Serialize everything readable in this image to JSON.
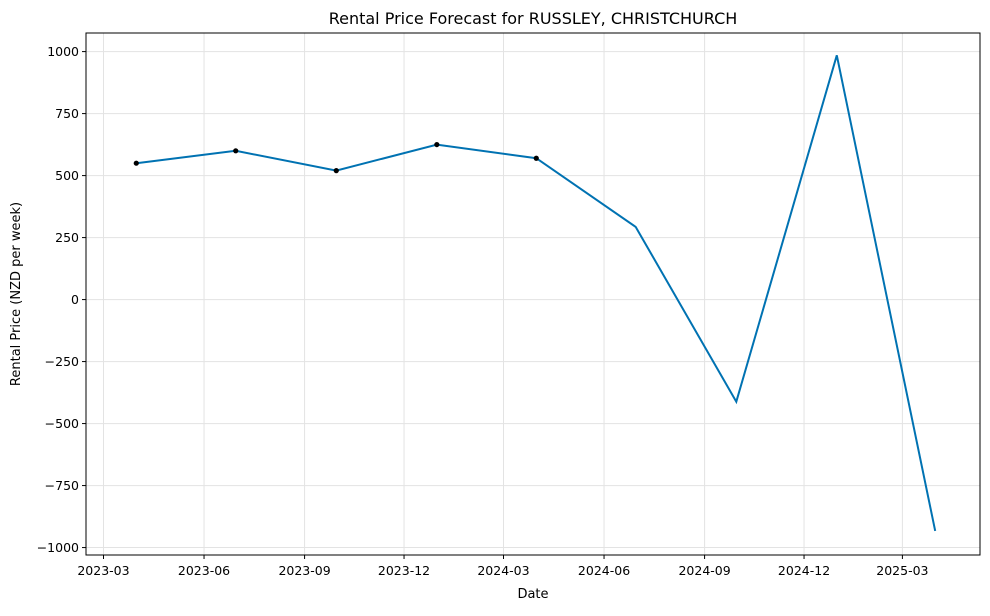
{
  "chart_data": {
    "type": "line",
    "title": "Rental Price Forecast for RUSSLEY, CHRISTCHURCH",
    "xlabel": "Date",
    "ylabel": "Rental Price (NZD per week)",
    "xlim": [
      "2023-02-13",
      "2025-05-11"
    ],
    "ylim": [
      -1030,
      1075
    ],
    "grid": true,
    "x_ticks": [
      "2023-03",
      "2023-06",
      "2023-09",
      "2023-12",
      "2024-03",
      "2024-06",
      "2024-09",
      "2024-12",
      "2025-03"
    ],
    "x_tick_dates": [
      "2023-03-01",
      "2023-06-01",
      "2023-09-01",
      "2023-12-01",
      "2024-03-01",
      "2024-06-01",
      "2024-09-01",
      "2024-12-01",
      "2025-03-01"
    ],
    "y_ticks": [
      1000,
      750,
      500,
      250,
      0,
      -250,
      -500,
      -750,
      -1000
    ],
    "y_tick_labels": [
      "1000",
      "750",
      "500",
      "250",
      "0",
      "−250",
      "−500",
      "−750",
      "−1000"
    ],
    "series": [
      {
        "color": "#0072B2",
        "x": [
          "2023-03-31",
          "2023-06-30",
          "2023-09-30",
          "2023-12-31",
          "2024-03-31",
          "2024-06-30",
          "2024-09-30",
          "2024-12-31",
          "2025-03-31"
        ],
        "y": [
          550,
          600,
          520,
          625,
          570,
          293,
          -412,
          985,
          -933
        ]
      }
    ],
    "observed": {
      "color": "#000000",
      "x": [
        "2023-03-31",
        "2023-06-30",
        "2023-09-30",
        "2023-12-31",
        "2024-03-31"
      ],
      "y": [
        550,
        600,
        520,
        625,
        570
      ]
    }
  }
}
